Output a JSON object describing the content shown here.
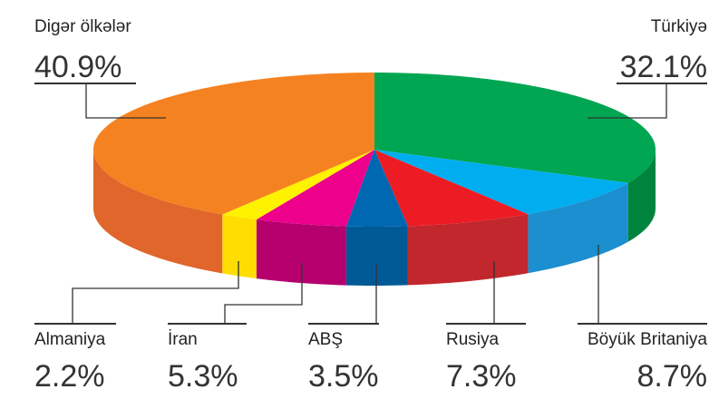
{
  "chart_data": {
    "type": "pie3d",
    "categories": [
      "Türkiyə",
      "Böyük Britaniya",
      "Rusiya",
      "ABŞ",
      "İran",
      "Almaniya",
      "Digər ölkələr"
    ],
    "values": [
      32.1,
      8.7,
      7.3,
      3.5,
      5.3,
      2.2,
      40.9
    ],
    "value_labels": [
      "32.1%",
      "8.7%",
      "7.3%",
      "3.5%",
      "5.3%",
      "2.2%",
      "40.9%"
    ],
    "colors": [
      "#00a651",
      "#00aeef",
      "#ed1c24",
      "#0067b1",
      "#ec008c",
      "#fff200",
      "#f58220"
    ],
    "side_colors": [
      "#00843d",
      "#1b8fcf",
      "#c1272d",
      "#005a96",
      "#b5006e",
      "#ffdd00",
      "#e0662b"
    ]
  }
}
